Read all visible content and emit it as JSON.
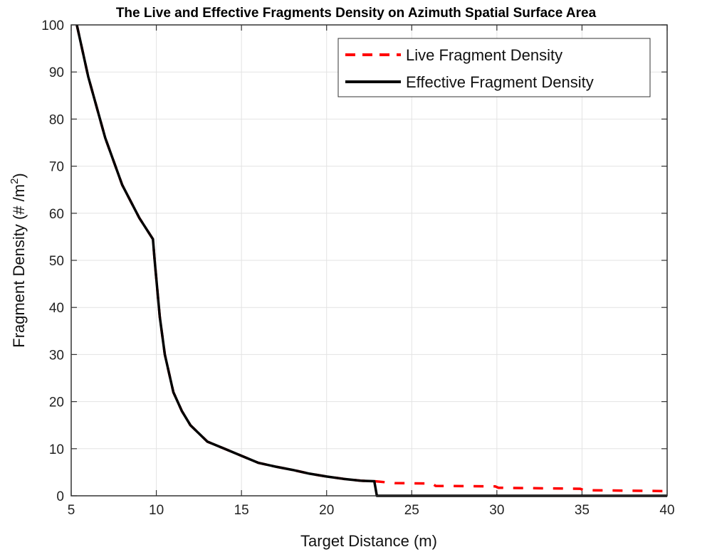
{
  "chart_data": {
    "type": "line",
    "title": "The Live and Effective Fragments Density on Azimuth Spatial Surface Area",
    "xlabel": "Target Distance (m)",
    "ylabel": "Fragment Density (# /m",
    "ylabel_superscript": "2",
    "ylabel_close": ")",
    "xlim": [
      5,
      40
    ],
    "ylim": [
      0,
      100
    ],
    "xticks": [
      5,
      10,
      15,
      20,
      25,
      30,
      35,
      40
    ],
    "yticks": [
      0,
      10,
      20,
      30,
      40,
      50,
      60,
      70,
      80,
      90,
      100
    ],
    "grid": true,
    "legend_position": "top-right",
    "series": [
      {
        "name": "Live Fragment Density",
        "color": "#ff0000",
        "style": "dashed",
        "x": [
          5.33,
          6,
          7,
          8,
          9,
          9.8,
          9.9,
          10.2,
          10.5,
          11,
          11.5,
          12,
          13,
          14,
          15,
          16,
          17,
          18,
          19,
          20,
          21,
          22,
          22.8,
          24,
          26.2,
          26.4,
          29.9,
          30.1,
          34.9,
          35.1,
          40
        ],
        "y": [
          100,
          89,
          76,
          66,
          59,
          54.5,
          50,
          38,
          30,
          22,
          18,
          15,
          11.5,
          10,
          8.5,
          7,
          6.2,
          5.5,
          4.7,
          4.1,
          3.6,
          3.2,
          3.1,
          2.7,
          2.6,
          2.1,
          2.0,
          1.7,
          1.5,
          1.2,
          1.0
        ]
      },
      {
        "name": "Effective Fragment Density",
        "color": "#000000",
        "style": "solid",
        "x": [
          5.33,
          6,
          7,
          8,
          9,
          9.8,
          9.9,
          10.2,
          10.5,
          11,
          11.5,
          12,
          13,
          14,
          15,
          16,
          17,
          18,
          19,
          20,
          21,
          22,
          22.8,
          22.95,
          40
        ],
        "y": [
          100,
          89,
          76,
          66,
          59,
          54.5,
          50,
          38,
          30,
          22,
          18,
          15,
          11.5,
          10,
          8.5,
          7,
          6.2,
          5.5,
          4.7,
          4.1,
          3.6,
          3.2,
          3.1,
          0,
          0
        ]
      }
    ]
  }
}
